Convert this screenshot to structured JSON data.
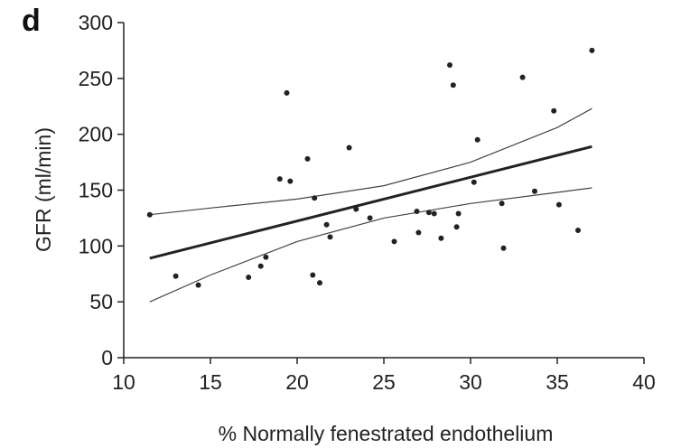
{
  "chart_data": {
    "type": "scatter",
    "panel_label": "d",
    "xlabel": "% Normally fenestrated endothelium",
    "ylabel": "GFR (ml/min)",
    "xlim": [
      10,
      40
    ],
    "ylim": [
      0,
      300
    ],
    "x_ticks": [
      10,
      15,
      20,
      25,
      30,
      35,
      40
    ],
    "y_ticks": [
      0,
      50,
      100,
      150,
      200,
      250,
      300
    ],
    "grid": false,
    "points": [
      {
        "x": 11.5,
        "y": 128
      },
      {
        "x": 13.0,
        "y": 73
      },
      {
        "x": 14.3,
        "y": 65
      },
      {
        "x": 17.2,
        "y": 72
      },
      {
        "x": 17.9,
        "y": 82
      },
      {
        "x": 18.2,
        "y": 90
      },
      {
        "x": 19.0,
        "y": 160
      },
      {
        "x": 19.4,
        "y": 237
      },
      {
        "x": 19.6,
        "y": 158
      },
      {
        "x": 20.6,
        "y": 178
      },
      {
        "x": 20.9,
        "y": 74
      },
      {
        "x": 21.0,
        "y": 143
      },
      {
        "x": 21.3,
        "y": 67
      },
      {
        "x": 21.7,
        "y": 119
      },
      {
        "x": 21.9,
        "y": 108
      },
      {
        "x": 23.0,
        "y": 188
      },
      {
        "x": 23.4,
        "y": 133
      },
      {
        "x": 24.2,
        "y": 125
      },
      {
        "x": 25.6,
        "y": 104
      },
      {
        "x": 26.9,
        "y": 131
      },
      {
        "x": 27.0,
        "y": 112
      },
      {
        "x": 27.6,
        "y": 130
      },
      {
        "x": 27.9,
        "y": 129
      },
      {
        "x": 28.3,
        "y": 107
      },
      {
        "x": 28.8,
        "y": 262
      },
      {
        "x": 29.0,
        "y": 244
      },
      {
        "x": 29.2,
        "y": 117
      },
      {
        "x": 29.3,
        "y": 129
      },
      {
        "x": 30.2,
        "y": 157
      },
      {
        "x": 30.4,
        "y": 195
      },
      {
        "x": 31.8,
        "y": 138
      },
      {
        "x": 31.9,
        "y": 98
      },
      {
        "x": 33.0,
        "y": 251
      },
      {
        "x": 33.7,
        "y": 149
      },
      {
        "x": 34.8,
        "y": 221
      },
      {
        "x": 35.1,
        "y": 137
      },
      {
        "x": 36.2,
        "y": 114
      },
      {
        "x": 37.0,
        "y": 275
      }
    ],
    "fit_line": [
      {
        "x": 11.5,
        "y": 89
      },
      {
        "x": 37.0,
        "y": 189
      }
    ],
    "confidence_upper": [
      {
        "x": 11.5,
        "y": 128
      },
      {
        "x": 15,
        "y": 134
      },
      {
        "x": 20,
        "y": 142
      },
      {
        "x": 25,
        "y": 154
      },
      {
        "x": 30,
        "y": 175
      },
      {
        "x": 35,
        "y": 206
      },
      {
        "x": 37.0,
        "y": 223
      }
    ],
    "confidence_lower": [
      {
        "x": 11.5,
        "y": 50
      },
      {
        "x": 15,
        "y": 74
      },
      {
        "x": 20,
        "y": 104
      },
      {
        "x": 25,
        "y": 125
      },
      {
        "x": 30,
        "y": 138
      },
      {
        "x": 35,
        "y": 148
      },
      {
        "x": 37.0,
        "y": 152
      }
    ]
  }
}
